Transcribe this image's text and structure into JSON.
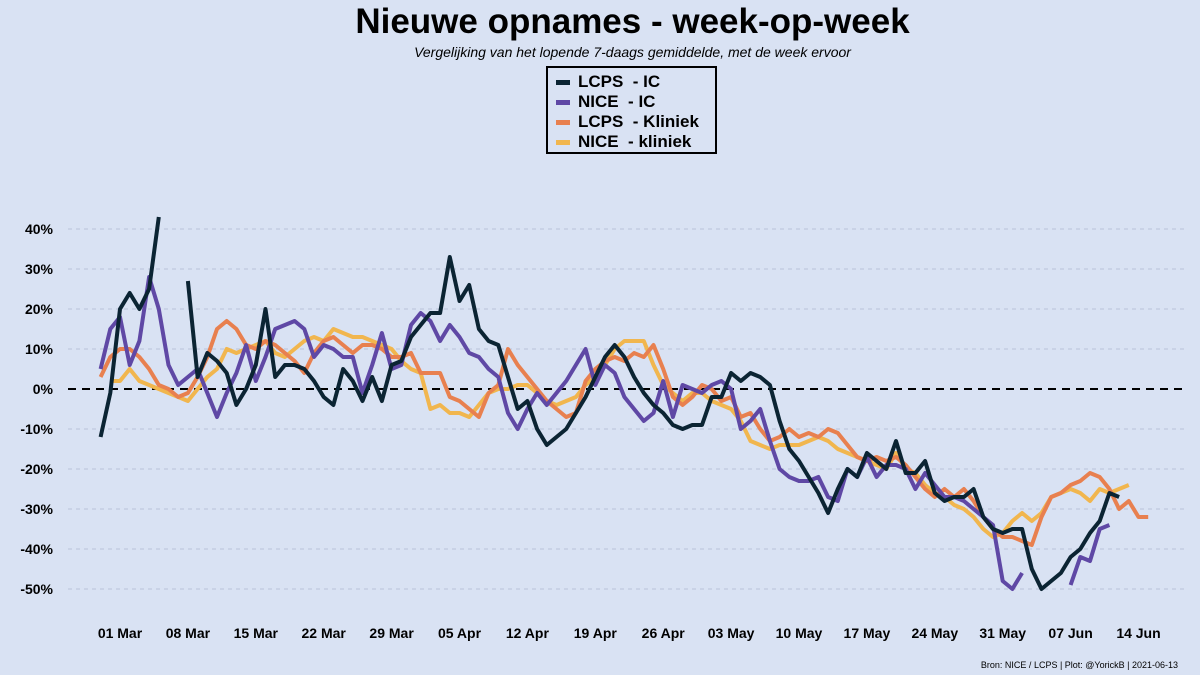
{
  "title": "Nieuwe opnames - week-op-week",
  "subtitle": "Vergelijking van het lopende 7-daags gemiddelde, met de week ervoor",
  "source": "Bron: NICE / LCPS | Plot: @YorickB |  2021-06-13",
  "chart_data": {
    "type": "line",
    "title": "Nieuwe opnames - week-op-week",
    "subtitle": "Vergelijking van het lopende 7-daags gemiddelde, met de week ervoor",
    "xlabel": "",
    "ylabel": "",
    "x_start": "2021-02-27",
    "x_ticks": [
      "01 Mar",
      "08 Mar",
      "15 Mar",
      "22 Mar",
      "29 Mar",
      "05 Apr",
      "12 Apr",
      "19 Apr",
      "26 Apr",
      "03 May",
      "10 May",
      "17 May",
      "24 May",
      "31 May",
      "07 Jun",
      "14 Jun"
    ],
    "y_ticks": [
      "40%",
      "30%",
      "20%",
      "10%",
      "0%",
      "-10%",
      "-20%",
      "-30%",
      "-40%",
      "-50%"
    ],
    "y_tick_values": [
      40,
      30,
      20,
      10,
      0,
      -10,
      -20,
      -30,
      -40,
      -50
    ],
    "ylim": [
      -55,
      44
    ],
    "grid": "horizontal dashed",
    "zero_line": "dashed black",
    "legend_position": "top-center",
    "series": [
      {
        "name": "LCPS - IC",
        "legend_label": "LCPS  - IC",
        "color": "#0b2433",
        "values": [
          -12,
          -1,
          20,
          24,
          20,
          25,
          43,
          null,
          null,
          27,
          3,
          9,
          7,
          4,
          -4,
          0,
          6,
          20,
          3,
          6,
          6,
          5,
          2,
          -2,
          -4,
          5,
          2,
          -3,
          3,
          -3,
          6,
          7,
          13,
          16,
          19,
          19,
          33,
          22,
          26,
          15,
          12,
          11,
          3,
          -5,
          -3,
          -10,
          -14,
          -12,
          -10,
          -6,
          -2,
          3,
          8,
          11,
          8,
          3,
          -1,
          -4,
          -6,
          -9,
          -10,
          -9,
          -9,
          -2,
          -2,
          4,
          2,
          4,
          3,
          1,
          -8,
          -15,
          -18,
          -22,
          -26,
          -31,
          -25,
          -20,
          -22,
          -16,
          -18,
          -20,
          -13,
          -21,
          -21,
          -18,
          -26,
          -28,
          -27,
          -27,
          -25,
          -32,
          -35,
          -36,
          -35,
          -35,
          -45,
          -50,
          -48,
          -46,
          -42,
          -40,
          -36,
          -33,
          -26,
          -27
        ]
      },
      {
        "name": "NICE - IC",
        "legend_label": "NICE  - IC",
        "color": "#5f48a5",
        "values": [
          5,
          15,
          18,
          6,
          12,
          28,
          20,
          6,
          1,
          3,
          5,
          -1,
          -7,
          -1,
          4,
          11,
          2,
          8,
          15,
          16,
          17,
          15,
          8,
          11,
          10,
          8,
          8,
          -1,
          6,
          14,
          5,
          6,
          16,
          19,
          17,
          12,
          16,
          13,
          9,
          8,
          5,
          3,
          -6,
          -10,
          -5,
          -1,
          -4,
          -1,
          2,
          6,
          10,
          1,
          6,
          4,
          -2,
          -5,
          -8,
          -6,
          2,
          -7,
          1,
          0,
          -1,
          1,
          2,
          0,
          -10,
          -8,
          -5,
          -13,
          -20,
          -22,
          -23,
          -23,
          -22,
          -27,
          -28,
          -20,
          -22,
          -17,
          -22,
          -19,
          -19,
          -20,
          -25,
          -21,
          -24,
          -27,
          -27,
          -28,
          -30,
          -32,
          -34,
          -48,
          -50,
          -46,
          null,
          null,
          null,
          null,
          -49,
          -42,
          -43,
          -35,
          -34
        ]
      },
      {
        "name": "LCPS - Kliniek",
        "legend_label": "LCPS  - Kliniek",
        "color": "#e8804f",
        "values": [
          3,
          8,
          10,
          10,
          8,
          5,
          1,
          0,
          -2,
          -1,
          3,
          8,
          15,
          17,
          15,
          11,
          10,
          12,
          11,
          9,
          7,
          4,
          9,
          12,
          13,
          11,
          9,
          11,
          11,
          10,
          8,
          8,
          9,
          4,
          4,
          4,
          -2,
          -3,
          -5,
          -7,
          -1,
          1,
          10,
          6,
          3,
          0,
          -3,
          -5,
          -7,
          -6,
          2,
          5,
          7,
          8,
          7,
          9,
          8,
          11,
          5,
          -2,
          -4,
          -2,
          1,
          0,
          -3,
          -2,
          -7,
          -6,
          -10,
          -13,
          -12,
          -10,
          -12,
          -11,
          -12,
          -10,
          -11,
          -14,
          -17,
          -18,
          -17,
          -18,
          -17,
          -19,
          -22,
          -25,
          -27,
          -25,
          -27,
          -25,
          -28,
          -32,
          -35,
          -37,
          -37,
          -38,
          -39,
          -32,
          -27,
          -26,
          -24,
          -23,
          -21,
          -22,
          -25,
          -30,
          -28,
          -32,
          -32
        ]
      },
      {
        "name": "NICE - kliniek",
        "legend_label": "NICE  - kliniek",
        "color": "#f1b64e",
        "values": [
          null,
          2,
          2,
          5,
          2,
          1,
          0,
          -1,
          -2,
          -3,
          0,
          3,
          5,
          10,
          9,
          10,
          11,
          12,
          9,
          8,
          10,
          12,
          13,
          12,
          15,
          14,
          13,
          13,
          12,
          11,
          10,
          7,
          5,
          4,
          -5,
          -4,
          -6,
          -6,
          -7,
          -4,
          -1,
          0,
          0,
          1,
          1,
          -1,
          -3,
          -4,
          -3,
          -2,
          1,
          3,
          6,
          10,
          12,
          12,
          12,
          6,
          1,
          -1,
          -3,
          -1,
          -1,
          -3,
          -4,
          -5,
          -8,
          -13,
          -14,
          -15,
          -14,
          -14,
          -14,
          -13,
          -12,
          -13,
          -15,
          -16,
          -17,
          -18,
          -19,
          -20,
          -16,
          -20,
          -21,
          -24,
          -26,
          -27,
          -29,
          -30,
          -32,
          -35,
          -37,
          -36,
          -33,
          -31,
          -33,
          -31,
          -27,
          -26,
          -25,
          -26,
          -28,
          -25,
          -26,
          -25,
          -24
        ]
      }
    ]
  }
}
